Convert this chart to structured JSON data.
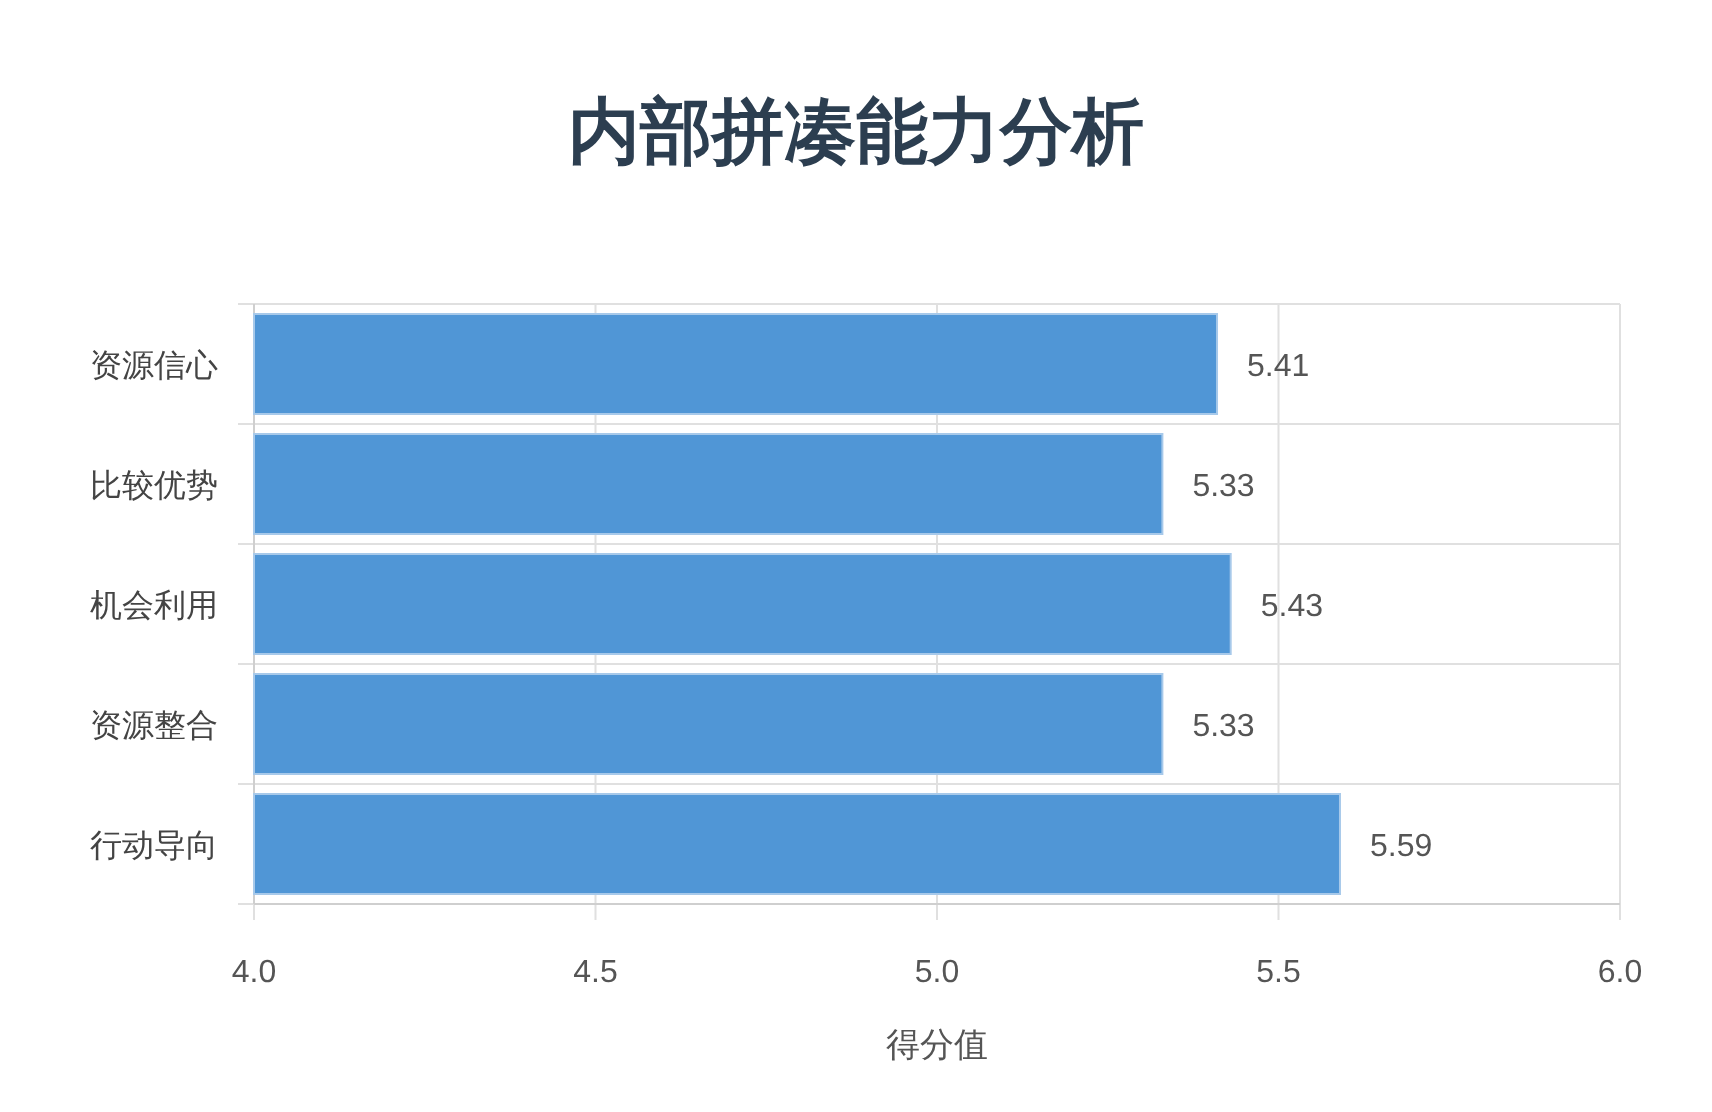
{
  "chart_data": {
    "type": "bar",
    "orientation": "horizontal",
    "title": "内部拼凑能力分析",
    "xlabel": "得分值",
    "categories": [
      "资源信心",
      "比较优势",
      "机会利用",
      "资源整合",
      "行动导向"
    ],
    "values": [
      5.41,
      5.33,
      5.43,
      5.33,
      5.59
    ],
    "color": "#5096d6",
    "xlim": [
      4.0,
      6.0
    ],
    "xticks": [
      {
        "value": 4.0,
        "label": "4.0"
      },
      {
        "value": 4.5,
        "label": "4.5"
      },
      {
        "value": 5.0,
        "label": "5.0"
      },
      {
        "value": 5.5,
        "label": "5.5"
      },
      {
        "value": 6.0,
        "label": "6.0"
      }
    ],
    "grid": true,
    "data_labels": true
  }
}
